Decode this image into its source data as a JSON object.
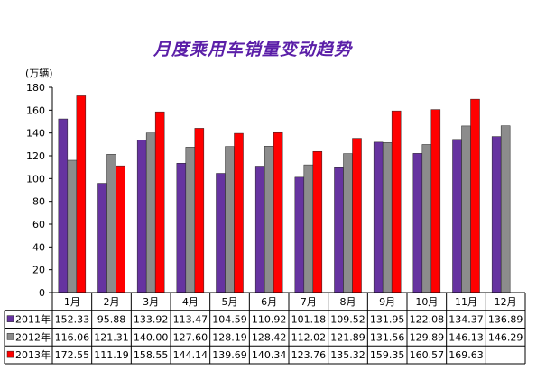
{
  "title": "月度乘用车销量变动趋势",
  "unit_label": "(万辆)",
  "chart_data": {
    "type": "bar",
    "title": "月度乘用车销量变动趋势",
    "ylabel": "(万辆)",
    "ylim": [
      0,
      180
    ],
    "ytick_step": 20,
    "grid": false,
    "legend_placement": "data-table",
    "categories": [
      "1月",
      "2月",
      "3月",
      "4月",
      "5月",
      "6月",
      "7月",
      "8月",
      "9月",
      "10月",
      "11月",
      "12月"
    ],
    "series": [
      {
        "name": "2011年",
        "color": "#6633a0",
        "values": [
          152.33,
          95.88,
          133.92,
          113.47,
          104.59,
          110.92,
          101.18,
          109.52,
          131.95,
          122.08,
          134.37,
          136.89
        ],
        "labels": [
          "152.33",
          "95.88",
          "133.92",
          "113.47",
          "104.59",
          "110.92",
          "101.18",
          "109.52",
          "131.95",
          "122.08",
          "134.37",
          "136.89"
        ]
      },
      {
        "name": "2012年",
        "color": "#8c8c8c",
        "values": [
          116.06,
          121.31,
          140.0,
          127.6,
          128.19,
          128.42,
          112.02,
          121.89,
          131.56,
          129.89,
          146.13,
          146.29
        ],
        "labels": [
          "116.06",
          "121.31",
          "140.00",
          "127.60",
          "128.19",
          "128.42",
          "112.02",
          "121.89",
          "131.56",
          "129.89",
          "146.13",
          "146.29"
        ]
      },
      {
        "name": "2013年",
        "color": "#ff0000",
        "values": [
          172.55,
          111.19,
          158.55,
          144.14,
          139.69,
          140.34,
          123.76,
          135.32,
          159.35,
          160.57,
          169.63,
          null
        ],
        "labels": [
          "172.55",
          "111.19",
          "158.55",
          "144.14",
          "139.69",
          "140.34",
          "123.76",
          "135.32",
          "159.35",
          "160.57",
          "169.63",
          ""
        ]
      }
    ]
  }
}
